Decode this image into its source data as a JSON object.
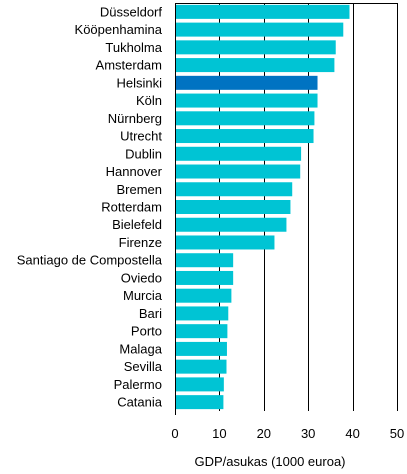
{
  "chart_data": {
    "type": "bar",
    "orientation": "horizontal",
    "categories": [
      "Düsseldorf",
      "Kööpenhamina",
      "Tukholma",
      "Amsterdam",
      "Helsinki",
      "Köln",
      "Nürnberg",
      "Utrecht",
      "Dublin",
      "Hannover",
      "Bremen",
      "Rotterdam",
      "Bielefeld",
      "Firenze",
      "Santiago de Compostella",
      "Oviedo",
      "Murcia",
      "Bari",
      "Porto",
      "Malaga",
      "Sevilla",
      "Palermo",
      "Catania"
    ],
    "values": [
      39.3,
      37.9,
      36.2,
      35.9,
      32.1,
      32.1,
      31.4,
      31.2,
      28.4,
      28.2,
      26.4,
      26.0,
      25.1,
      22.4,
      13.1,
      13.1,
      12.7,
      12.0,
      11.8,
      11.7,
      11.6,
      11.0,
      10.9
    ],
    "highlight_index": 4,
    "xlabel": "GDP/asukas (1000 euroa)",
    "xlim": [
      0,
      50
    ],
    "xticks": [
      0,
      10,
      20,
      30,
      40,
      50
    ],
    "grid": "vertical",
    "colors": {
      "bar": "#00c4d4",
      "highlight": "#0073c2",
      "grid": "#000000",
      "axis": "#000000"
    }
  }
}
